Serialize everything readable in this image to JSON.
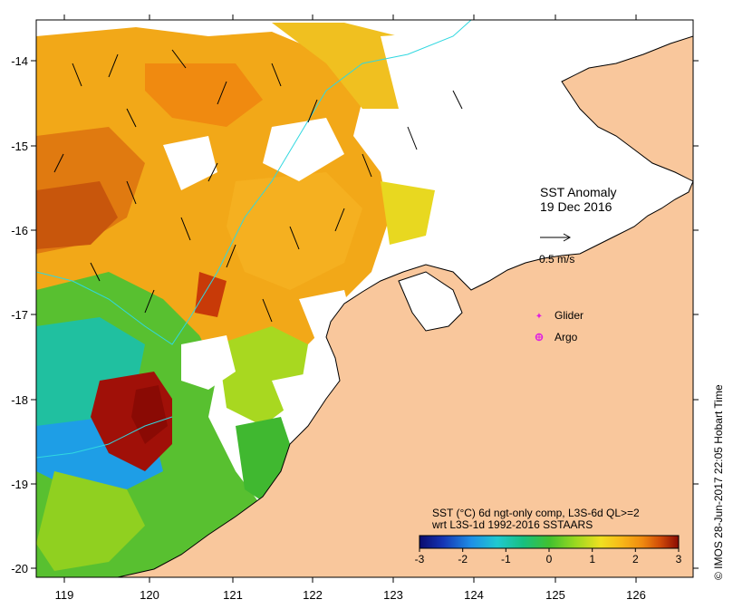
{
  "map": {
    "title": "SST Anomaly",
    "date": "19 Dec 2016",
    "lon_ticks": [
      "119",
      "120",
      "121",
      "122",
      "123",
      "124",
      "125",
      "126"
    ],
    "lat_ticks": [
      "-14",
      "-15",
      "-16",
      "-17",
      "-18",
      "-19",
      "-20"
    ],
    "lon_range": [
      118.7,
      126.7
    ],
    "lat_range": [
      -20.1,
      -13.5
    ]
  },
  "legend": {
    "velocity_scale": "0.5 m/s",
    "glider": "Glider",
    "argo": "Argo",
    "description_line1": "SST (°C) 6d ngt-only comp, L3S-6d QL>=2",
    "description_line2": "wrt L3S-1d 1992-2016 SSTAARS",
    "colorbar_ticks": [
      "-3",
      "-2",
      "-1",
      "0",
      "1",
      "2",
      "3"
    ],
    "colorbar_range": [
      -3,
      3
    ]
  },
  "credit": "© IMOS 28-Jun-2017 22:05 Hobart Time",
  "colors": {
    "land": "#f9c79c",
    "frame": "#000000",
    "glider": "#e020e0",
    "argo": "#e020e0",
    "bathymetry": "#30d8e0",
    "colormap": [
      "#0a0a6e",
      "#1434b4",
      "#1e90e6",
      "#20c8d0",
      "#18c080",
      "#40c030",
      "#98d820",
      "#f0e020",
      "#f8b818",
      "#f08a10",
      "#d04a08",
      "#8a0a04"
    ]
  }
}
